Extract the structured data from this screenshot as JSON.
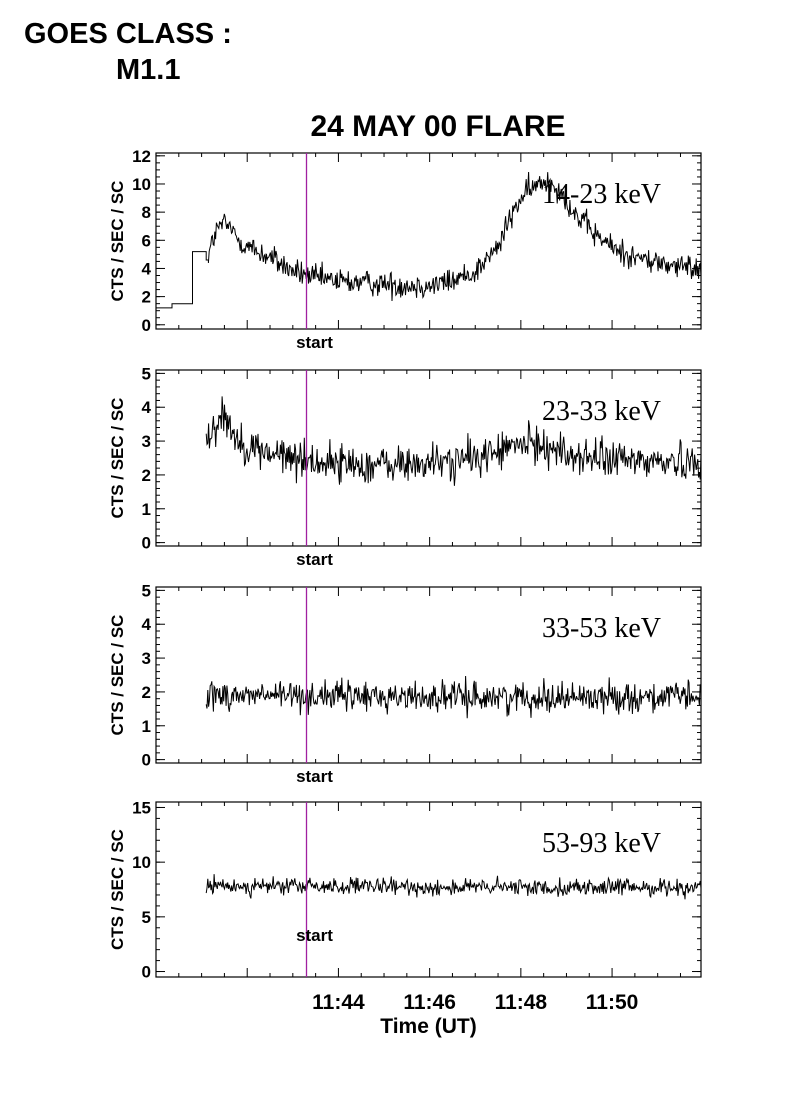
{
  "header": {
    "goes_line1": "GOES CLASS :",
    "goes_line2": "M1.1"
  },
  "colors": {
    "trace": "#000000",
    "marker": "#a020a0",
    "axes": "#000000"
  },
  "chart_data": {
    "type": "line",
    "title": "24 MAY 00 FLARE",
    "xlabel": "Time (UT)",
    "x_unit": "minutes after 11:40 UT",
    "xlim": [
      0.0,
      11.95
    ],
    "x_ticks": [
      4,
      6,
      8,
      10
    ],
    "x_tick_labels": [
      "11:44",
      "11:46",
      "11:48",
      "11:50"
    ],
    "start_marker": {
      "x": 3.3,
      "label": "start"
    },
    "panels": [
      {
        "name": "14-23 keV",
        "ylabel": "CTS / SEC / SC",
        "ylim": [
          -0.3,
          12.2
        ],
        "yticks": [
          0,
          2,
          4,
          6,
          8,
          10,
          12
        ],
        "step_prefix": [
          [
            0.0,
            1.2
          ],
          [
            0.35,
            1.5
          ],
          [
            0.8,
            5.2
          ],
          [
            1.1,
            4.6
          ]
        ],
        "x": [
          1.15,
          1.3,
          1.45,
          1.6,
          1.75,
          1.9,
          2.05,
          2.2,
          2.5,
          3.0,
          3.5,
          4.0,
          4.5,
          5.0,
          5.5,
          6.0,
          6.5,
          7.0,
          7.5,
          7.8,
          8.0,
          8.3,
          8.6,
          8.8,
          9.2,
          9.6,
          10.0,
          10.5,
          11.0,
          11.5,
          11.95
        ],
        "y": [
          5.0,
          6.5,
          7.2,
          7.0,
          6.3,
          5.8,
          5.5,
          5.2,
          4.8,
          3.8,
          3.3,
          3.1,
          3.0,
          2.9,
          2.8,
          2.8,
          3.1,
          3.8,
          5.5,
          7.8,
          9.0,
          9.8,
          10.3,
          9.8,
          7.8,
          6.5,
          5.5,
          4.8,
          4.4,
          4.1,
          4.0
        ],
        "noise": 0.45
      },
      {
        "name": "23-33 keV",
        "ylabel": "CTS / SEC / SC",
        "ylim": [
          -0.1,
          5.1
        ],
        "yticks": [
          0,
          1,
          2,
          3,
          4,
          5
        ],
        "x": [
          1.1,
          1.3,
          1.5,
          1.65,
          1.8,
          2.1,
          2.6,
          3.5,
          4.5,
          5.5,
          6.5,
          7.0,
          7.5,
          8.0,
          8.5,
          9.0,
          9.5,
          10.0,
          11.0,
          11.95
        ],
        "y": [
          3.1,
          3.5,
          3.8,
          3.4,
          3.0,
          2.8,
          2.6,
          2.4,
          2.3,
          2.3,
          2.4,
          2.5,
          2.7,
          2.9,
          2.9,
          2.6,
          2.5,
          2.45,
          2.4,
          2.4
        ],
        "noise": 0.28
      },
      {
        "name": "33-53 keV",
        "ylabel": "CTS / SEC / SC",
        "ylim": [
          -0.1,
          5.1
        ],
        "yticks": [
          0,
          1,
          2,
          3,
          4,
          5
        ],
        "x": [
          1.1,
          3.0,
          6.0,
          9.0,
          11.95
        ],
        "y": [
          1.9,
          1.9,
          1.85,
          1.85,
          1.85
        ],
        "noise": 0.22
      },
      {
        "name": "53-93 keV",
        "ylabel": "CTS / SEC / SC",
        "ylim": [
          -0.5,
          15.5
        ],
        "yticks": [
          0,
          5,
          10,
          15
        ],
        "x": [
          1.1,
          3.0,
          6.0,
          9.0,
          11.95
        ],
        "y": [
          7.8,
          7.8,
          7.7,
          7.7,
          7.7
        ],
        "noise": 0.38
      }
    ]
  }
}
